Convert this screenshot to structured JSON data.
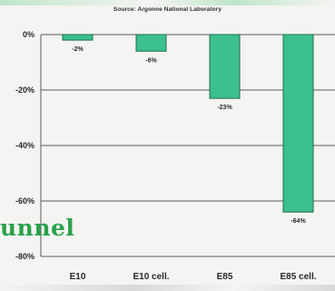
{
  "source_text": "Source: Argonne National Laboratory",
  "watermark_text": "unnel",
  "colors": {
    "bar_fill": "#3cc08d",
    "bar_stroke": "#1f6f4a",
    "grid": "#5a5a5a",
    "text": "#2a2a2a",
    "watermark": "#2aa24a"
  },
  "chart_data": {
    "type": "bar",
    "categories": [
      "E10",
      "E10 cell.",
      "E85",
      "E85 cell."
    ],
    "values": [
      -2,
      -6,
      -23,
      -64
    ],
    "value_labels": [
      "-2%",
      "-6%",
      "-23%",
      "-64%"
    ],
    "yticks": [
      0,
      -20,
      -40,
      -60,
      -80
    ],
    "ytick_labels": [
      "0%",
      "-20%",
      "-40%",
      "-60%",
      "-80%"
    ],
    "ylim": [
      -80,
      0
    ],
    "title": "",
    "xlabel": "",
    "ylabel": "",
    "grid": true,
    "legend": "none"
  }
}
